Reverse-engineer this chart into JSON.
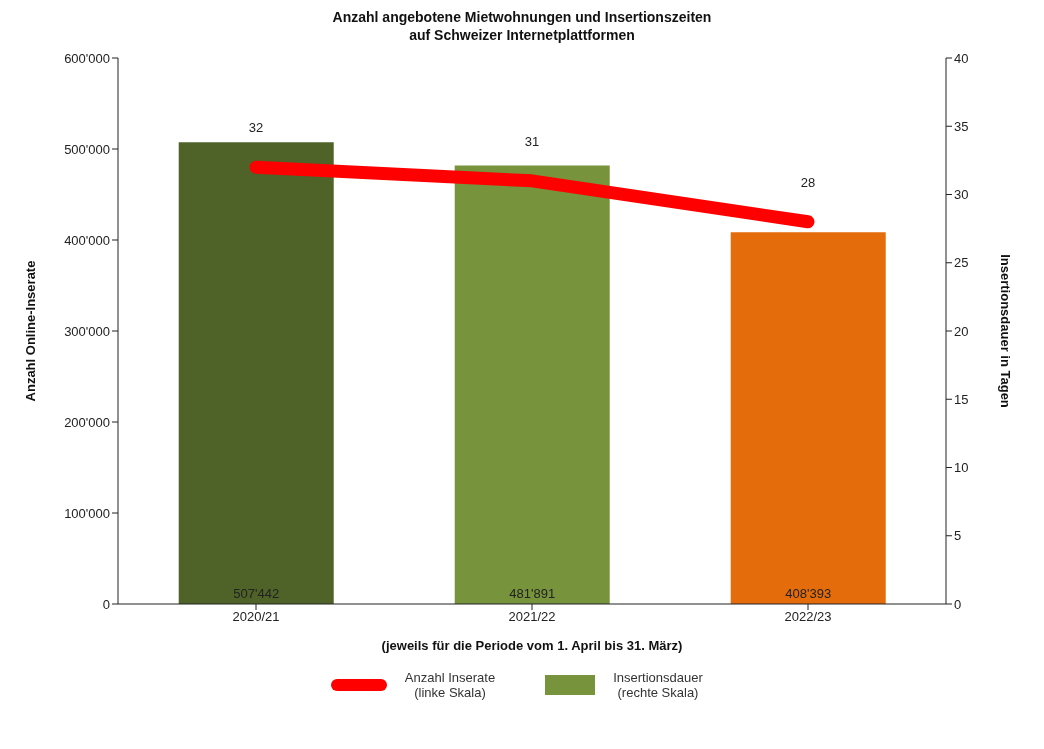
{
  "chart_data": {
    "type": "bar",
    "title": "Anzahl angebotene Mietwohnungen und Insertionszeiten\nauf Schweizer Internetplattformen",
    "xlabel": "(jeweils für die Periode vom 1. April bis 31. März)",
    "ylabel": "Anzahl Online-Inserate",
    "y2label": "Insertionsdauer in Tagen",
    "categories": [
      "2020/21",
      "2021/22",
      "2022/23"
    ],
    "series": [
      {
        "name": "Anzahl Inserate (linke Skala)",
        "type": "line",
        "axis": "y2",
        "color": "#ff0000",
        "values": [
          32,
          31,
          28
        ],
        "value_labels": [
          "32",
          "31",
          "28"
        ]
      },
      {
        "name": "Insertionsdauer (rechte Skala)",
        "color": "#77933c",
        "colors": [
          "#4f6228",
          "#77933c",
          "#e46c0a"
        ],
        "values": [
          507442,
          481891,
          408393
        ],
        "value_labels": [
          "507'442",
          "481'891",
          "408'393"
        ]
      }
    ],
    "ylim": [
      0,
      600000
    ],
    "yticks": [
      {
        "value": 0,
        "label": "0"
      },
      {
        "value": 100000,
        "label": "100'000"
      },
      {
        "value": 200000,
        "label": "200'000"
      },
      {
        "value": 300000,
        "label": "300'000"
      },
      {
        "value": 400000,
        "label": "400'000"
      },
      {
        "value": 500000,
        "label": "500'000"
      },
      {
        "value": 600000,
        "label": "600'000"
      }
    ],
    "y2lim": [
      0,
      40
    ],
    "y2ticks": [
      0,
      5,
      10,
      15,
      20,
      25,
      30,
      35,
      40
    ],
    "grid": false,
    "legend": "bottom"
  }
}
